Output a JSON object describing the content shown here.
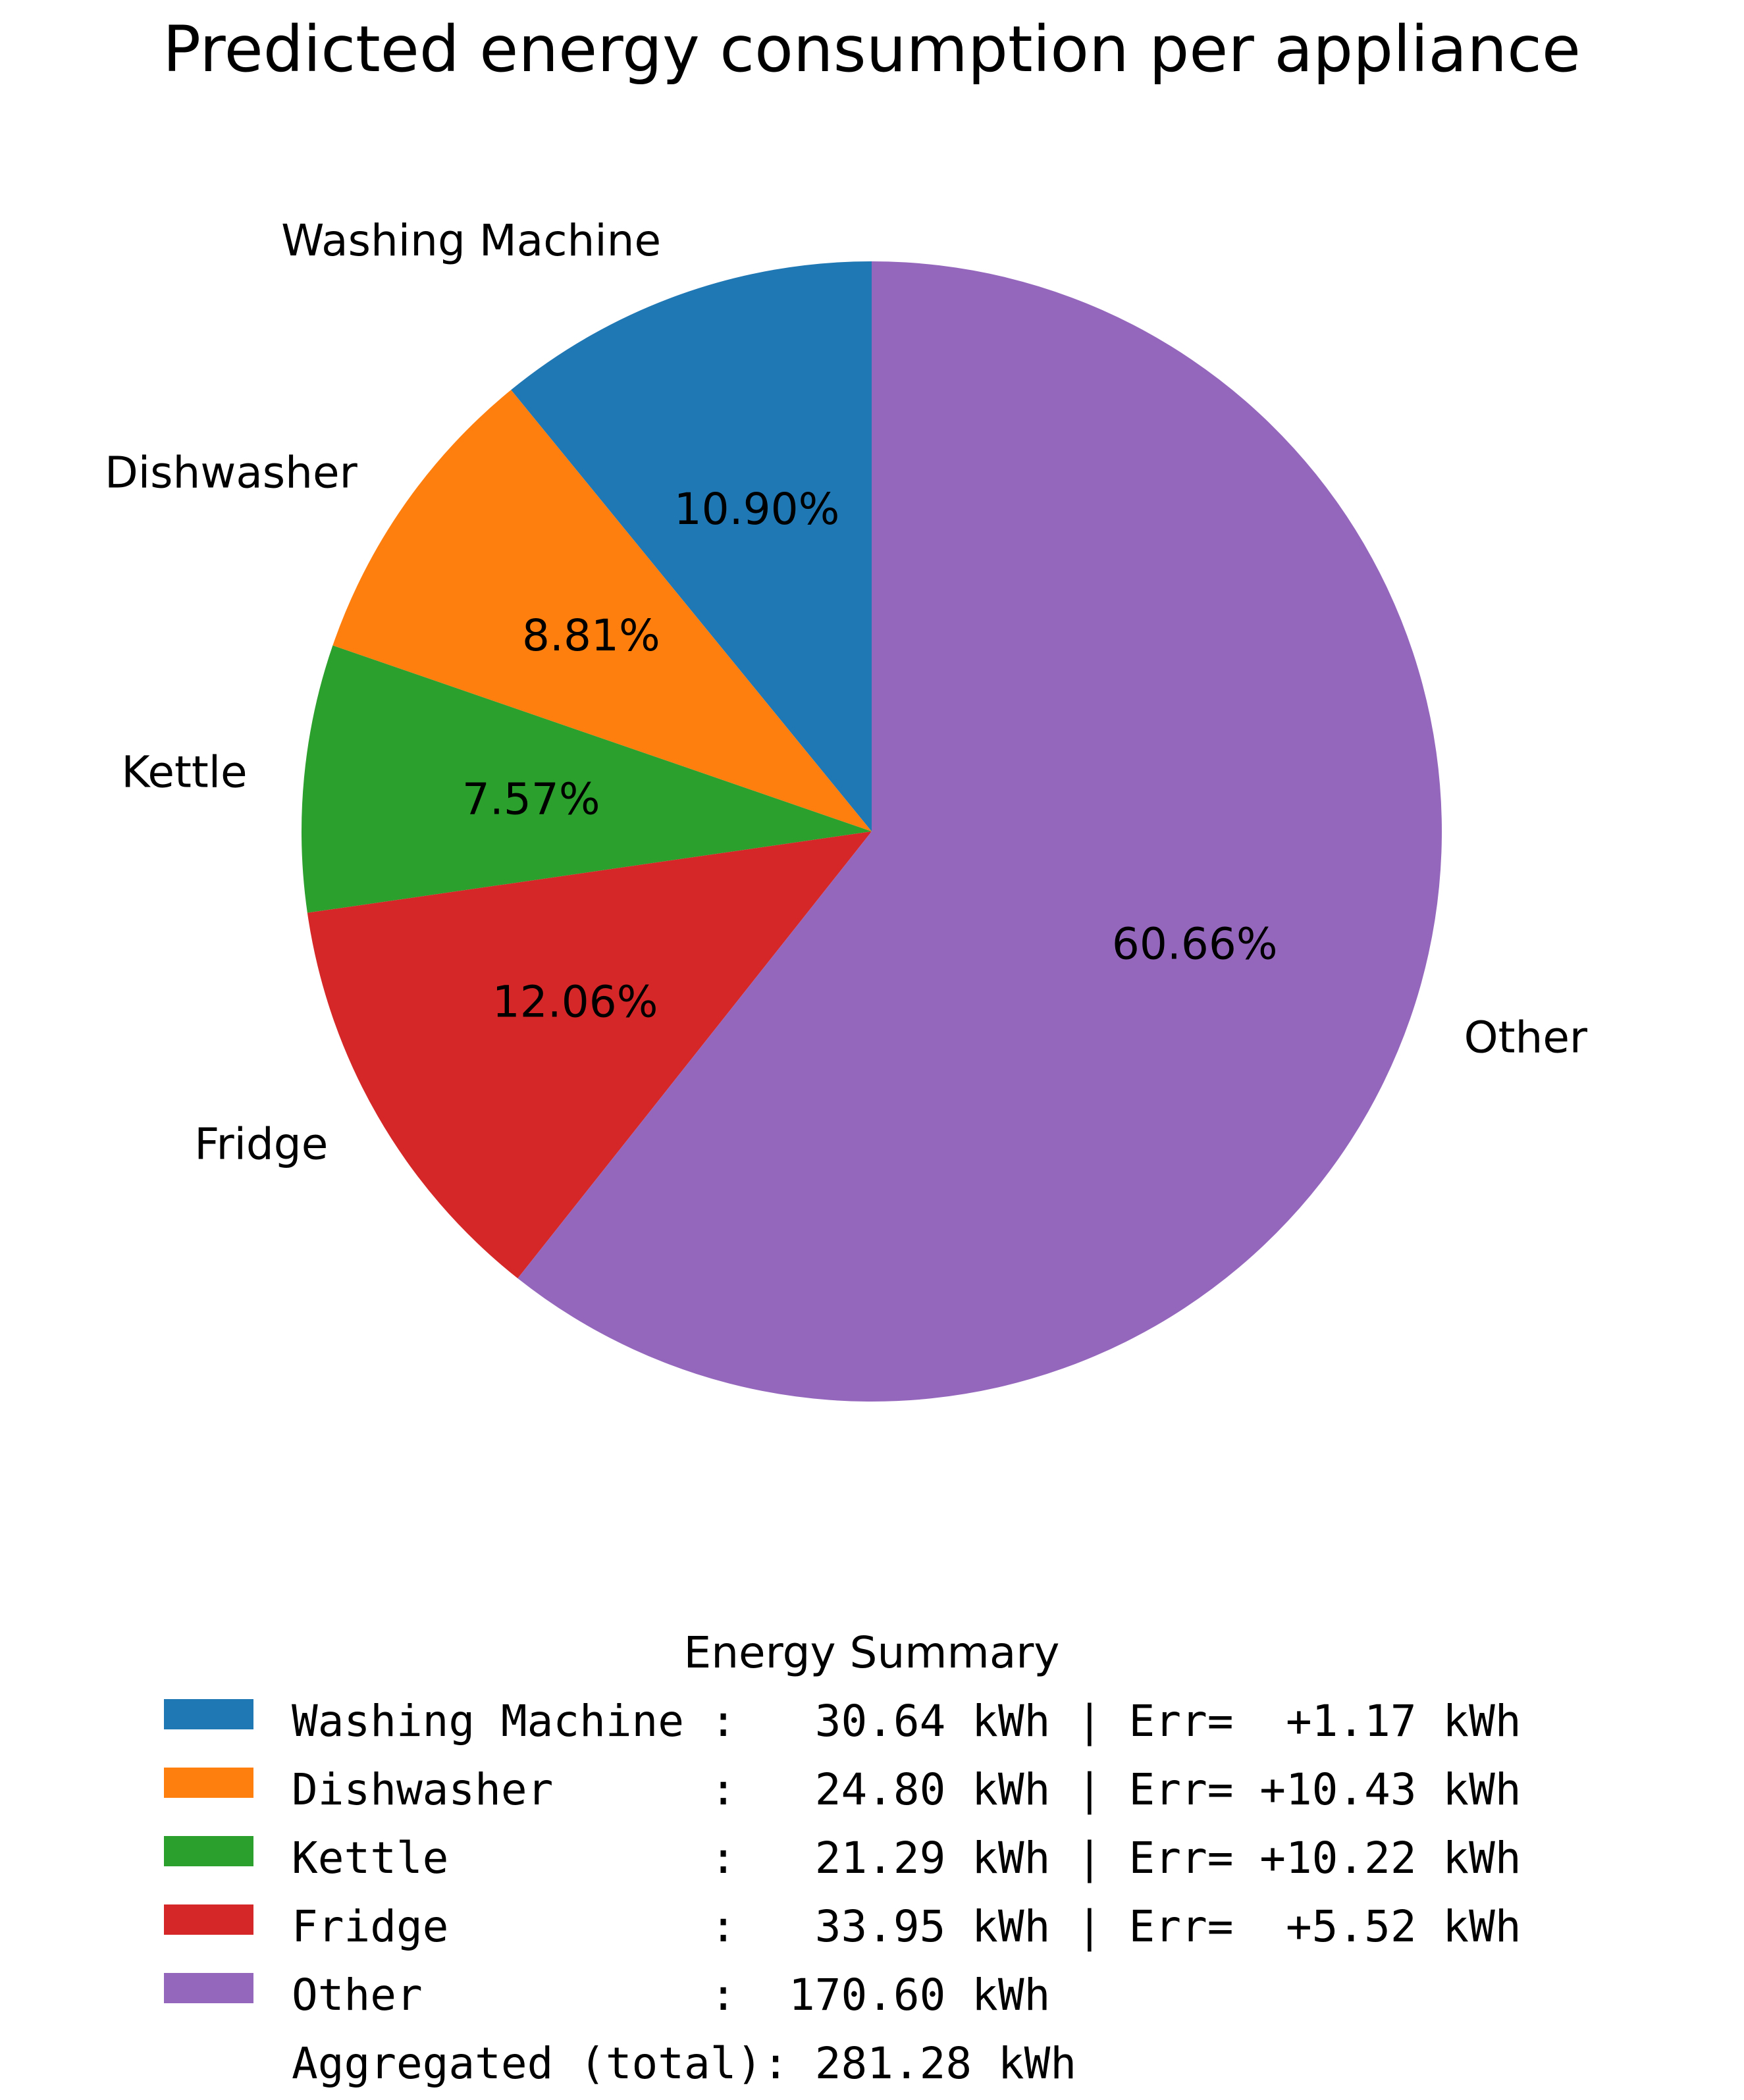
{
  "chart_data": {
    "type": "pie",
    "title": "Predicted energy consumption per appliance",
    "categories": [
      "Washing Machine",
      "Dishwasher",
      "Kettle",
      "Fridge",
      "Other"
    ],
    "values": [
      10.9,
      8.81,
      7.57,
      12.06,
      60.66
    ],
    "percent_labels": [
      "10.90%",
      "8.81%",
      "7.57%",
      "12.06%",
      "60.66%"
    ],
    "colors": [
      "#1f77b4",
      "#ff7f0e",
      "#2ca02c",
      "#d62728",
      "#9467bd"
    ],
    "start_angle_deg": 90,
    "direction": "counterclockwise",
    "legend": {
      "title": "Energy Summary",
      "placement": "bottom",
      "entries": [
        "Washing Machine :   30.64 kWh | Err=  +1.17 kWh",
        "Dishwasher      :   24.80 kWh | Err= +10.43 kWh",
        "Kettle          :   21.29 kWh | Err= +10.22 kWh",
        "Fridge          :   33.95 kWh | Err=  +5.52 kWh",
        "Other           :  170.60 kWh"
      ],
      "footer": "Aggregated (total): 281.28 kWh"
    }
  }
}
